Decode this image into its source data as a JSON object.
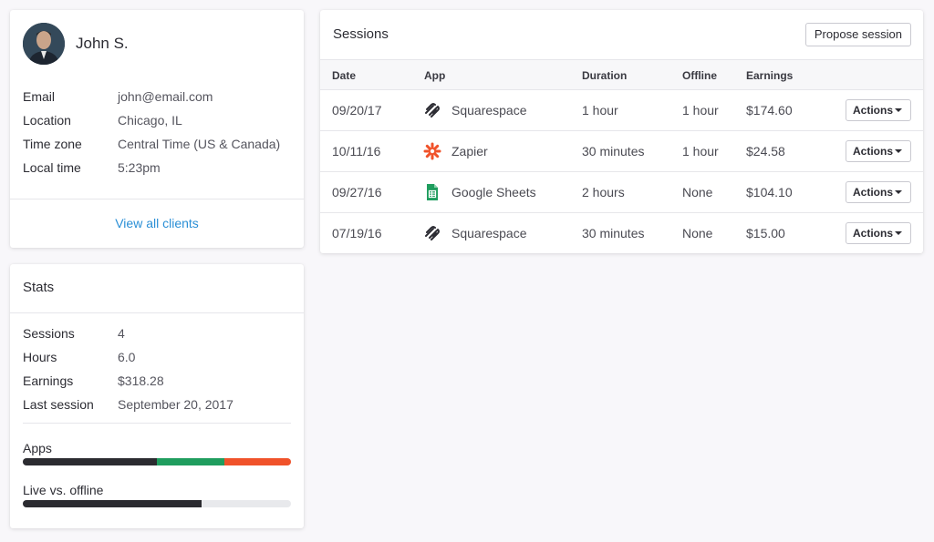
{
  "profile": {
    "name": "John S.",
    "fields": [
      {
        "label": "Email",
        "value": "john@email.com"
      },
      {
        "label": "Location",
        "value": "Chicago, IL"
      },
      {
        "label": "Time zone",
        "value": "Central Time (US & Canada)"
      },
      {
        "label": "Local time",
        "value": "5:23pm"
      }
    ],
    "view_all_link": "View all clients"
  },
  "stats": {
    "title": "Stats",
    "fields": [
      {
        "label": "Sessions",
        "value": "4"
      },
      {
        "label": "Hours",
        "value": "6.0"
      },
      {
        "label": "Earnings",
        "value": "$318.28"
      },
      {
        "label": "Last session",
        "value": "September 20, 2017"
      }
    ],
    "apps_label": "Apps",
    "apps_bar": [
      {
        "fraction": 0.5,
        "color": "#2b2b30"
      },
      {
        "fraction": 0.25,
        "color": "#1f9d5e"
      },
      {
        "fraction": 0.25,
        "color": "#f0522a"
      }
    ],
    "live_label": "Live vs. offline",
    "live_bar": {
      "fraction": 0.667,
      "color": "#2b2b30",
      "track_color": "#e8e9ec"
    }
  },
  "sessions": {
    "title": "Sessions",
    "propose_label": "Propose session",
    "columns": [
      "Date",
      "App",
      "Duration",
      "Offline",
      "Earnings"
    ],
    "rows": [
      {
        "date": "09/20/17",
        "app": "Squarespace",
        "icon": "squarespace-icon",
        "duration": "1 hour",
        "offline": "1 hour",
        "earnings": "$174.60",
        "action": "Actions"
      },
      {
        "date": "10/11/16",
        "app": "Zapier",
        "icon": "zapier-icon",
        "duration": "30 minutes",
        "offline": "1 hour",
        "earnings": "$24.58",
        "action": "Actions"
      },
      {
        "date": "09/27/16",
        "app": "Google Sheets",
        "icon": "google-sheets-icon",
        "duration": "2 hours",
        "offline": "None",
        "earnings": "$104.10",
        "action": "Actions"
      },
      {
        "date": "07/19/16",
        "app": "Squarespace",
        "icon": "squarespace-icon",
        "duration": "30 minutes",
        "offline": "None",
        "earnings": "$15.00",
        "action": "Actions"
      }
    ]
  },
  "colors": {
    "link": "#2a8fd6",
    "zapier": "#f0522a",
    "sheets": "#1f9d5e",
    "background": "#f8f7fa"
  }
}
